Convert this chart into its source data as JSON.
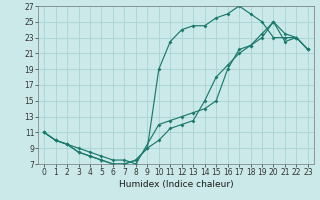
{
  "xlabel": "Humidex (Indice chaleur)",
  "xlim": [
    -0.5,
    23.5
  ],
  "ylim": [
    7,
    27
  ],
  "xticks": [
    0,
    1,
    2,
    3,
    4,
    5,
    6,
    7,
    8,
    9,
    10,
    11,
    12,
    13,
    14,
    15,
    16,
    17,
    18,
    19,
    20,
    21,
    22,
    23
  ],
  "yticks": [
    7,
    9,
    11,
    13,
    15,
    17,
    19,
    21,
    23,
    25,
    27
  ],
  "bg_color": "#cce9e9",
  "grid_color": "#a8d4d4",
  "line_color": "#1a7a6e",
  "line1_x": [
    0,
    1,
    2,
    3,
    4,
    5,
    6,
    7,
    8,
    9,
    10,
    11,
    12,
    13,
    14,
    15,
    16,
    17,
    18,
    19,
    20,
    21,
    22,
    23
  ],
  "line1_y": [
    11,
    10,
    9.5,
    8.5,
    8.0,
    7.5,
    7.0,
    7.0,
    7.5,
    9.0,
    19.0,
    22.5,
    24.0,
    24.5,
    24.5,
    25.5,
    26.0,
    27.0,
    26.0,
    25.0,
    23.0,
    23.0,
    23.0,
    21.5
  ],
  "line2_x": [
    0,
    1,
    2,
    3,
    4,
    5,
    6,
    7,
    8,
    9,
    10,
    11,
    12,
    13,
    14,
    15,
    16,
    17,
    18,
    19,
    20,
    21,
    22,
    23
  ],
  "line2_y": [
    11,
    10,
    9.5,
    8.5,
    8.0,
    7.5,
    7.0,
    7.0,
    7.5,
    9.0,
    10.0,
    11.5,
    12.0,
    12.5,
    15.0,
    18.0,
    19.5,
    21.0,
    22.0,
    23.5,
    25.0,
    22.5,
    23.0,
    21.5
  ],
  "line3_x": [
    0,
    1,
    2,
    3,
    4,
    5,
    6,
    7,
    8,
    10,
    11,
    12,
    13,
    14,
    15,
    16,
    17,
    18,
    19,
    20,
    21,
    22,
    23
  ],
  "line3_y": [
    11,
    10,
    9.5,
    9.0,
    8.5,
    8.0,
    7.5,
    7.5,
    7.0,
    12.0,
    12.5,
    13.0,
    13.5,
    14.0,
    15.0,
    19.0,
    21.5,
    22.0,
    23.0,
    25.0,
    23.5,
    23.0,
    21.5
  ],
  "tick_fontsize": 5.5,
  "xlabel_fontsize": 6.5
}
